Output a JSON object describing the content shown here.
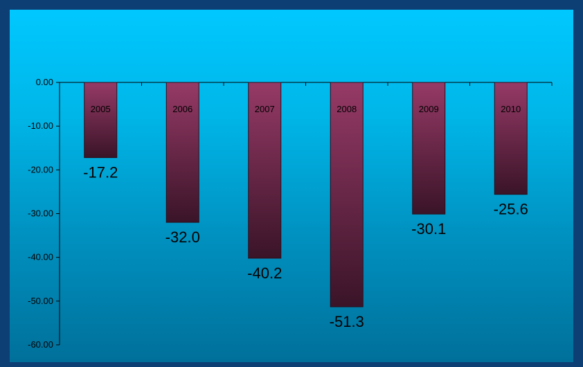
{
  "chart_data": {
    "type": "bar",
    "categories": [
      "2005",
      "2006",
      "2007",
      "2008",
      "2009",
      "2010"
    ],
    "values": [
      -17.2,
      -32.0,
      -40.2,
      -51.3,
      -30.1,
      -25.6
    ],
    "data_labels": [
      "-17.2",
      "-32.0",
      "-40.2",
      "-51.3",
      "-30.1",
      "-25.6"
    ],
    "y_ticks": [
      "0.00",
      "-10.00",
      "-20.00",
      "-30.00",
      "-40.00",
      "-50.00",
      "-60.00"
    ],
    "ylim": [
      -60,
      0
    ],
    "title": "",
    "xlabel": "",
    "ylabel": "",
    "grid": false,
    "colors": {
      "bar_top": "#963a66",
      "bar_bottom": "#3a1428",
      "bar_border": "#2a0e1c",
      "background_top": "#00c8ff",
      "background_bottom": "#00709a",
      "frame": "#0d3e74"
    }
  }
}
